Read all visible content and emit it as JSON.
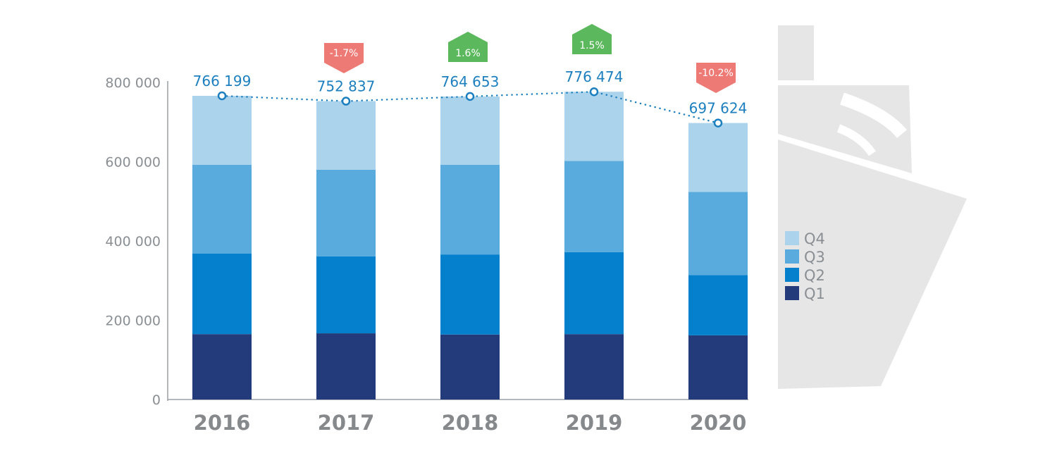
{
  "chart_data": {
    "type": "bar",
    "stacked": true,
    "categories": [
      "2016",
      "2017",
      "2018",
      "2019",
      "2020"
    ],
    "series": [
      {
        "name": "Q1",
        "color": "#233a7b",
        "values": [
          165000,
          167000,
          164000,
          165000,
          162000
        ]
      },
      {
        "name": "Q2",
        "color": "#0580cc",
        "values": [
          203000,
          194000,
          202000,
          207000,
          152000
        ]
      },
      {
        "name": "Q3",
        "color": "#58abdc",
        "values": [
          224000,
          219000,
          226000,
          230000,
          210000
        ]
      },
      {
        "name": "Q4",
        "color": "#acd3ec",
        "values": [
          174199,
          172837,
          172653,
          174474,
          173624
        ]
      }
    ],
    "totals": [
      766199,
      752837,
      764653,
      776474,
      697624
    ],
    "total_labels": [
      "766 199",
      "752 837",
      "764 653",
      "776 474",
      "697 624"
    ],
    "changes": [
      {
        "category": "2017",
        "label": "-1.7%",
        "direction": "down",
        "color": "#ee7a76"
      },
      {
        "category": "2018",
        "label": "1.6%",
        "direction": "up",
        "color": "#5cb85c"
      },
      {
        "category": "2019",
        "label": "1.5%",
        "direction": "up",
        "color": "#5cb85c"
      },
      {
        "category": "2020",
        "label": "-10.2%",
        "direction": "down",
        "color": "#ee7a76"
      }
    ],
    "y_ticks": [
      0,
      200000,
      400000,
      600000,
      800000
    ],
    "y_tick_labels": [
      "0",
      "200 000",
      "400 000",
      "600 000",
      "800 000"
    ],
    "ylim": [
      0,
      800000
    ],
    "legend": [
      "Q4",
      "Q3",
      "Q2",
      "Q1"
    ],
    "legend_position": "right",
    "total_line": {
      "style": "dotted",
      "color": "#1c7fbf"
    },
    "decoration": {
      "icon": "ship-silhouette-icon",
      "color": "#e6e6e6"
    },
    "grid": false,
    "title": "",
    "xlabel": "",
    "ylabel": ""
  }
}
